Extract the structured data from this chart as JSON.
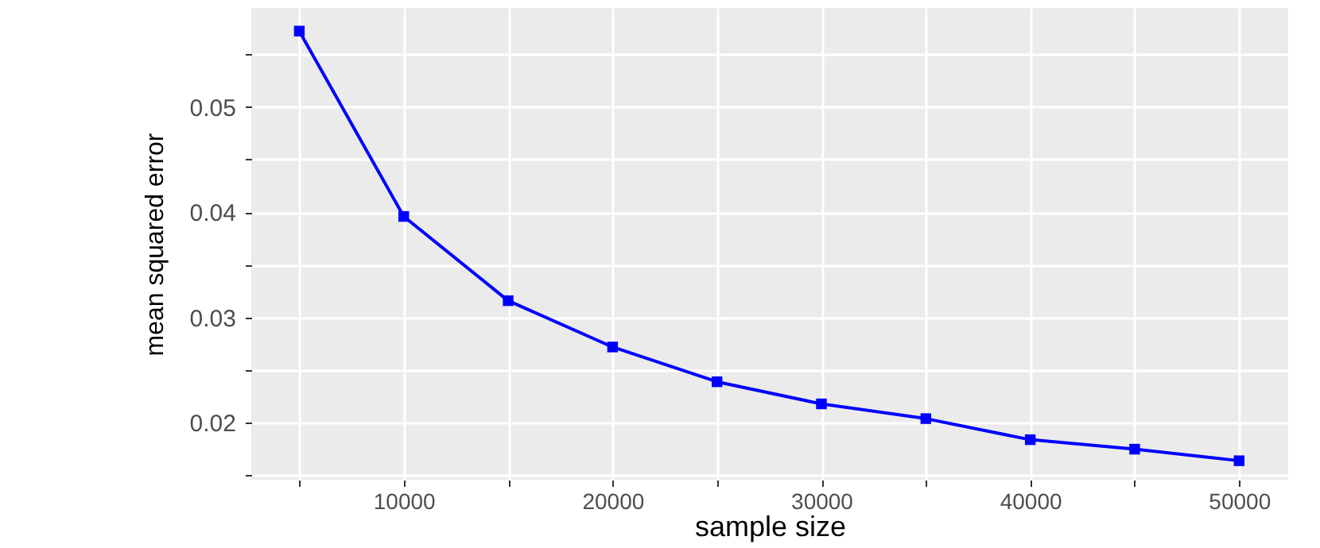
{
  "chart_data": {
    "type": "line",
    "xlabel": "sample size",
    "ylabel": "mean squared error",
    "x": [
      5000,
      10000,
      15000,
      20000,
      25000,
      30000,
      35000,
      40000,
      45000,
      50000
    ],
    "series": [
      {
        "color": "#0000ff",
        "values": [
          0.0572,
          0.0396,
          0.0316,
          0.0272,
          0.0239,
          0.0218,
          0.0204,
          0.0184,
          0.0175,
          0.0164
        ]
      }
    ],
    "xlim": [
      2700,
      52350
    ],
    "ylim": [
      0.0146,
      0.0594
    ],
    "xticks": [
      {
        "value": 5000,
        "label": null
      },
      10000,
      {
        "value": 15000,
        "label": null
      },
      20000,
      {
        "value": 25000,
        "label": null
      },
      30000,
      {
        "value": 35000,
        "label": null
      },
      40000,
      {
        "value": 45000,
        "label": null
      },
      50000
    ],
    "yticks": [
      {
        "value": 0.015,
        "label": null
      },
      0.02,
      {
        "value": 0.025,
        "label": null
      },
      0.03,
      {
        "value": 0.035,
        "label": null
      },
      0.04,
      {
        "value": 0.045,
        "label": null
      },
      0.05,
      {
        "value": 0.055,
        "label": null
      }
    ],
    "grid": true,
    "marker": "square",
    "line_style": "solid"
  }
}
